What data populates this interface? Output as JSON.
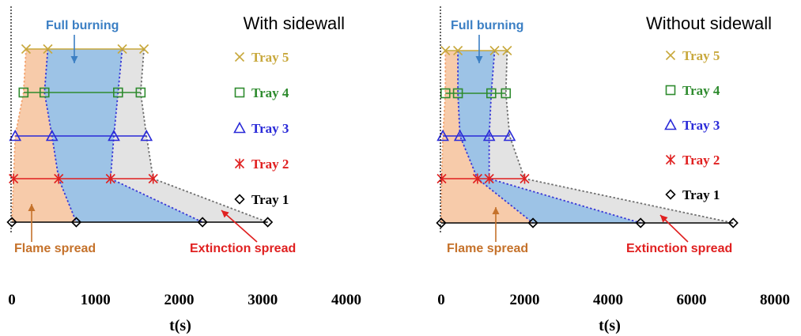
{
  "colors": {
    "flame_fill": "#f7cbaa",
    "burning_fill": "#9dc3e6",
    "extinction_fill": "#e3e3e3",
    "flame_edge": "#f4a46f",
    "burning_edge": "#3b3bd6",
    "extinction_edge": "#707070",
    "full_burning_text": "#3b7fc4",
    "flame_text": "#c5722b",
    "extinction_text": "#e02020"
  },
  "chart_data": [
    {
      "type": "line",
      "title": "With sidewall",
      "xlabel": "t(s)",
      "xlim": [
        0,
        4000
      ],
      "xticks": [
        "0",
        "1000",
        "2000",
        "3000",
        "4000"
      ],
      "grid": false,
      "legend_position": "right",
      "series": [
        {
          "name": "Tray 5",
          "color": "#c8a83c",
          "marker": "x",
          "points": [
            170,
            430,
            1320,
            1580
          ]
        },
        {
          "name": "Tray 4",
          "color": "#2e8b2e",
          "marker": "square",
          "points": [
            140,
            390,
            1270,
            1540
          ]
        },
        {
          "name": "Tray 3",
          "color": "#2a2ad8",
          "marker": "triangle",
          "points": [
            40,
            480,
            1220,
            1610
          ]
        },
        {
          "name": "Tray 2",
          "color": "#e02020",
          "marker": "asterisk",
          "points": [
            20,
            560,
            1180,
            1690
          ]
        },
        {
          "name": "Tray 1",
          "color": "#000000",
          "marker": "diamond",
          "points": [
            0,
            770,
            2280,
            3060
          ]
        }
      ],
      "annotations": [
        {
          "text": "Full burning",
          "kind": "full_burning"
        },
        {
          "text": "Flame spread",
          "kind": "flame"
        },
        {
          "text": "Extinction spread",
          "kind": "extinction"
        }
      ]
    },
    {
      "type": "line",
      "title": "Without sidewall",
      "xlabel": "t(s)",
      "xlim": [
        0,
        8000
      ],
      "xticks": [
        "0",
        "2000",
        "4000",
        "6000",
        "8000"
      ],
      "grid": false,
      "legend_position": "right",
      "series": [
        {
          "name": "Tray 5",
          "color": "#c8a83c",
          "marker": "x",
          "points": [
            100,
            400,
            1280,
            1580
          ]
        },
        {
          "name": "Tray 4",
          "color": "#2e8b2e",
          "marker": "square",
          "points": [
            100,
            400,
            1200,
            1550
          ]
        },
        {
          "name": "Tray 3",
          "color": "#2a2ad8",
          "marker": "triangle",
          "points": [
            40,
            450,
            1150,
            1640
          ]
        },
        {
          "name": "Tray 2",
          "color": "#e02020",
          "marker": "asterisk",
          "points": [
            10,
            870,
            1150,
            2000
          ]
        },
        {
          "name": "Tray 1",
          "color": "#000000",
          "marker": "diamond",
          "points": [
            0,
            2200,
            4780,
            7000
          ]
        }
      ],
      "annotations": [
        {
          "text": "Full burning",
          "kind": "full_burning"
        },
        {
          "text": "Flame spread",
          "kind": "flame"
        },
        {
          "text": "Extinction spread",
          "kind": "extinction"
        }
      ]
    }
  ]
}
